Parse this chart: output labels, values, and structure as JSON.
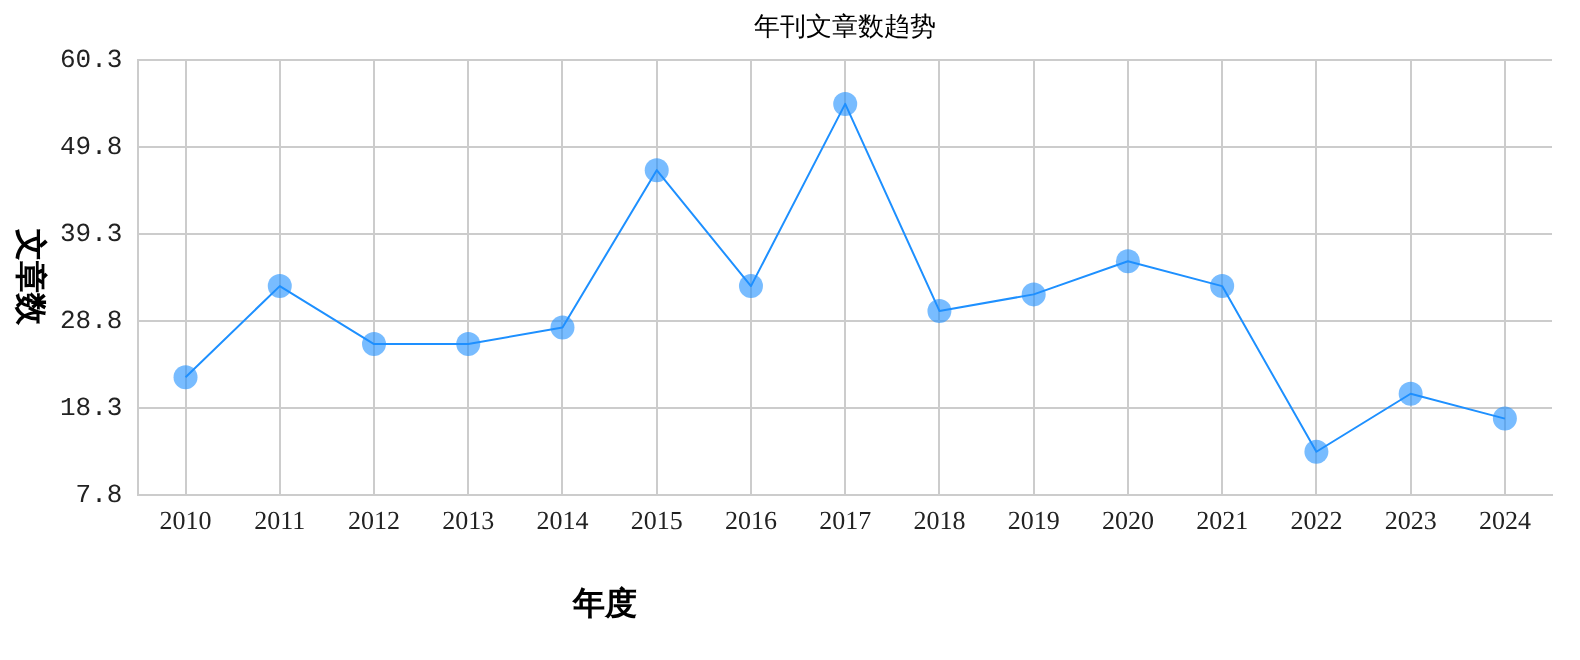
{
  "chart_data": {
    "type": "line",
    "title": "年刊文章数趋势",
    "xlabel": "年度",
    "ylabel": "文章数",
    "categories": [
      "2010",
      "2011",
      "2012",
      "2013",
      "2014",
      "2015",
      "2016",
      "2017",
      "2018",
      "2019",
      "2020",
      "2021",
      "2022",
      "2023",
      "2024"
    ],
    "series": [
      {
        "color": "#1e90ff",
        "values": [
          22,
          33,
          26,
          26,
          28,
          47,
          33,
          55,
          30,
          32,
          36,
          33,
          13,
          20,
          17
        ]
      }
    ],
    "ylim": [
      7.8,
      60.3
    ],
    "yticks": [
      7.8,
      18.3,
      28.8,
      39.3,
      49.8,
      60.3
    ],
    "grid": true,
    "marker": "circle",
    "line_style": "solid",
    "legend": false
  }
}
